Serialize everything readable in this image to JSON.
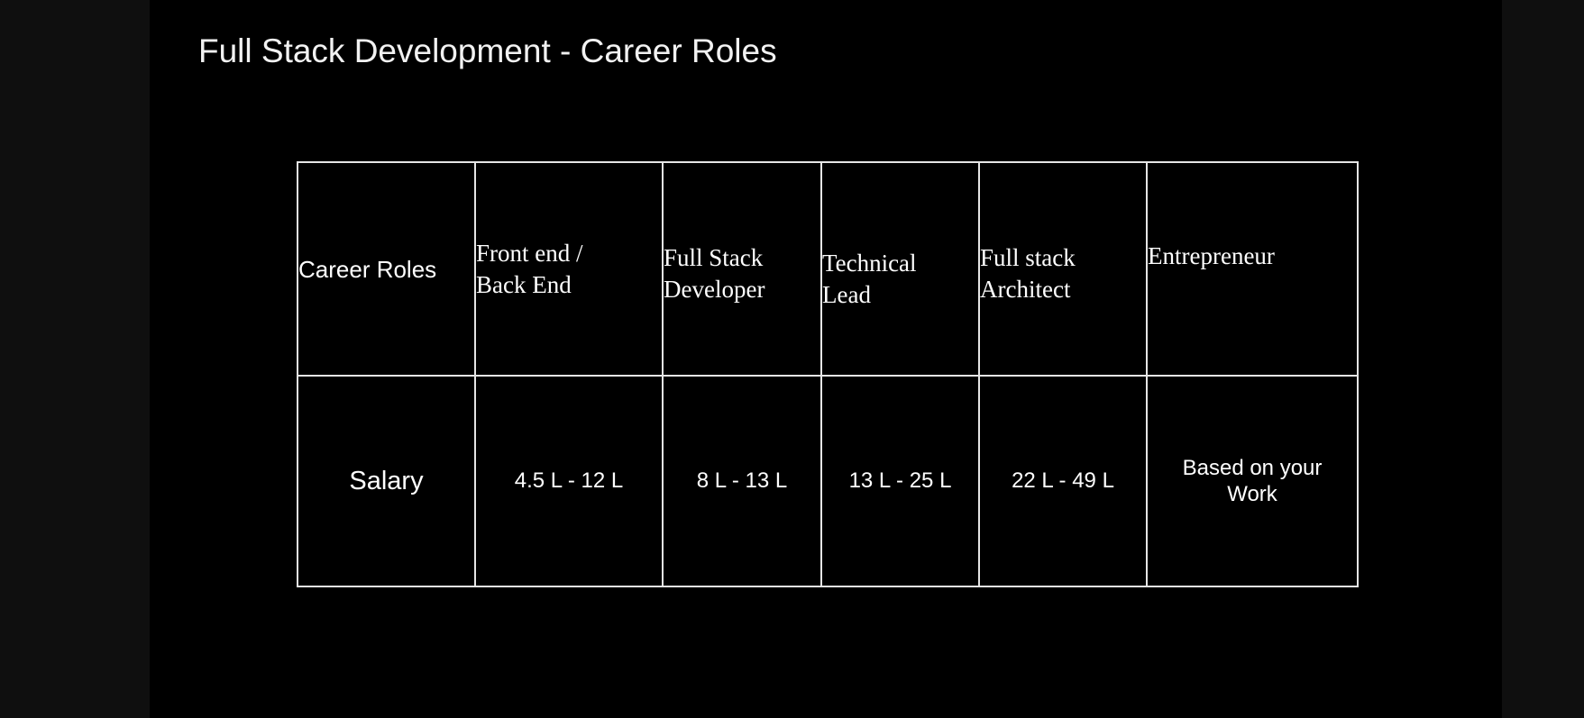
{
  "slide": {
    "title": "Full Stack Development - Career Roles"
  },
  "table": {
    "header_label": "Career Roles",
    "roles": [
      "Front end /\nBack End",
      "Full Stack\nDeveloper",
      "Technical\nLead",
      "Full stack\nArchitect",
      "Entrepreneur"
    ],
    "salary_label": "Salary",
    "salaries": [
      "4.5 L - 12 L",
      "8 L - 13 L",
      "13 L - 25 L",
      "22 L - 49 L",
      "Based on your\nWork"
    ]
  },
  "colors": {
    "page_bg": "#0f0f0f",
    "slide_bg": "#000000",
    "text": "#ffffff",
    "border": "#e6e6e6"
  }
}
